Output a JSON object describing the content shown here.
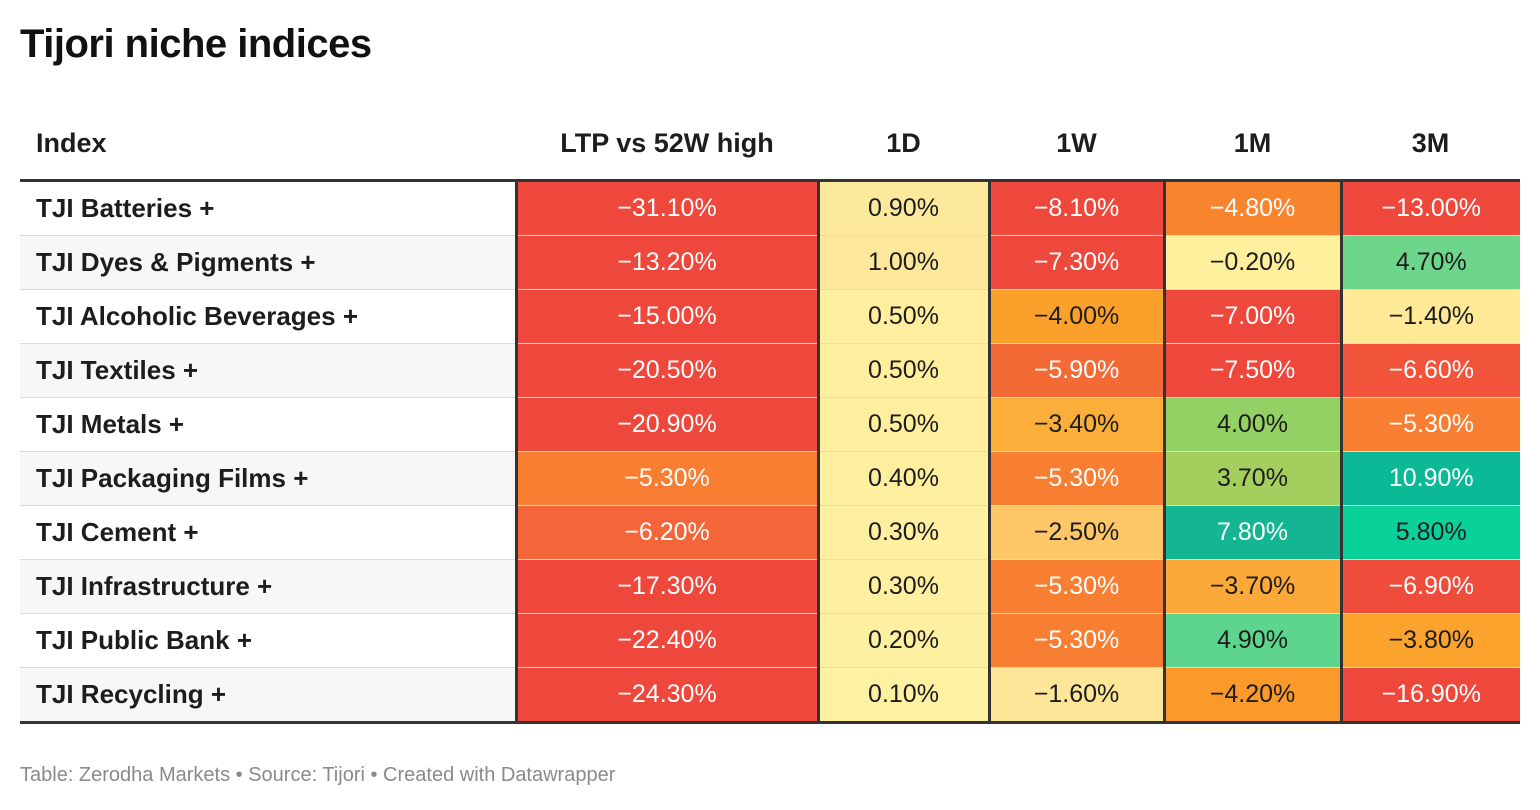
{
  "title": "Tijori niche indices",
  "footer": "Table: Zerodha Markets • Source: Tijori • Created with Datawrapper",
  "chart_data": {
    "type": "table",
    "title": "Tijori niche indices",
    "columns": [
      "Index",
      "LTP vs 52W high",
      "1D",
      "1W",
      "1M",
      "3M"
    ],
    "rows": [
      {
        "index": "TJI Batteries +",
        "values": [
          "−31.10%",
          "0.90%",
          "−8.10%",
          "−4.80%",
          "−13.00%"
        ],
        "colors": [
          "#ee473c",
          "#fde99b",
          "#ee473c",
          "#f8852e",
          "#ee473c"
        ]
      },
      {
        "index": "TJI Dyes & Pigments +",
        "values": [
          "−13.20%",
          "1.00%",
          "−7.30%",
          "−0.20%",
          "4.70%"
        ],
        "colors": [
          "#ee473c",
          "#fde79a",
          "#ee473c",
          "#feef9c",
          "#6ed68b"
        ]
      },
      {
        "index": "TJI Alcoholic Beverages +",
        "values": [
          "−15.00%",
          "0.50%",
          "−4.00%",
          "−7.00%",
          "−1.40%"
        ],
        "colors": [
          "#ee473c",
          "#feee9e",
          "#fba12b",
          "#ee473c",
          "#feea96"
        ]
      },
      {
        "index": "TJI Textiles +",
        "values": [
          "−20.50%",
          "0.50%",
          "−5.90%",
          "−7.50%",
          "−6.60%"
        ],
        "colors": [
          "#ee473c",
          "#feee9e",
          "#f36a36",
          "#ee473c",
          "#f1543a"
        ]
      },
      {
        "index": "TJI Metals +",
        "values": [
          "−20.90%",
          "0.50%",
          "−3.40%",
          "4.00%",
          "−5.30%"
        ],
        "colors": [
          "#ee473c",
          "#feee9e",
          "#fcae3a",
          "#94d165",
          "#f87e31"
        ]
      },
      {
        "index": "TJI Packaging Films +",
        "values": [
          "−5.30%",
          "0.40%",
          "−5.30%",
          "3.70%",
          "10.90%"
        ],
        "colors": [
          "#f87e31",
          "#feef9f",
          "#f87e31",
          "#a4cf5e",
          "#0bb997"
        ]
      },
      {
        "index": "TJI Cement +",
        "values": [
          "−6.20%",
          "0.30%",
          "−2.50%",
          "7.80%",
          "5.80%"
        ],
        "colors": [
          "#f4663a",
          "#fef0a0",
          "#fdc768",
          "#13b593",
          "#0ad09a"
        ]
      },
      {
        "index": "TJI Infrastructure +",
        "values": [
          "−17.30%",
          "0.30%",
          "−5.30%",
          "−3.70%",
          "−6.90%"
        ],
        "colors": [
          "#ee473c",
          "#fef0a0",
          "#f87e31",
          "#fca93a",
          "#ef4c3b"
        ]
      },
      {
        "index": "TJI Public Bank +",
        "values": [
          "−22.40%",
          "0.20%",
          "−5.30%",
          "4.90%",
          "−3.80%"
        ],
        "colors": [
          "#ee473c",
          "#fef0a1",
          "#f87e31",
          "#5dd58e",
          "#fba32d"
        ]
      },
      {
        "index": "TJI Recycling +",
        "values": [
          "−24.30%",
          "0.10%",
          "−1.60%",
          "−4.20%",
          "−16.90%"
        ],
        "colors": [
          "#ee473c",
          "#fef1a2",
          "#fee698",
          "#fb992a",
          "#ee473c"
        ]
      }
    ]
  }
}
